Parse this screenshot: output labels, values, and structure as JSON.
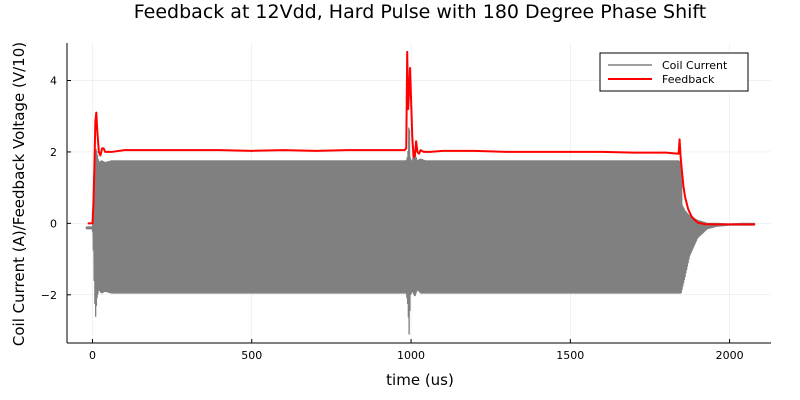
{
  "chart_data": {
    "type": "line",
    "title": "Feedback at 12Vdd, Hard Pulse with 180 Degree Phase Shift",
    "xlabel": "time (us)",
    "ylabel": "Coil Current (A)/Feedback Voltage (V/10)",
    "xlim": [
      -80,
      2130
    ],
    "ylim": [
      -3.35,
      5.05
    ],
    "xticks": [
      0,
      500,
      1000,
      1500,
      2000
    ],
    "yticks": [
      -2,
      0,
      2,
      4
    ],
    "xtick_labels": [
      "0",
      "500",
      "1000",
      "1500",
      "2000"
    ],
    "ytick_labels": [
      "−2",
      "0",
      "2",
      "4"
    ],
    "grid": true,
    "legend_position": "top-right",
    "series": [
      {
        "name": "Coil Current",
        "color": "#808080",
        "style": "oscillating envelope",
        "upper_envelope": {
          "x": [
            -20,
            0,
            4,
            6,
            10,
            14,
            20,
            28,
            40,
            60,
            200,
            500,
            800,
            985,
            990,
            994,
            998,
            1005,
            1012,
            1020,
            1030,
            1045,
            1100,
            1400,
            1700,
            1840,
            1848,
            1852,
            1860,
            1875,
            1900,
            1930,
            1960,
            2000,
            2040,
            2080
          ],
          "y": [
            -0.1,
            -0.1,
            0.6,
            1.7,
            2.1,
            2.0,
            1.7,
            1.75,
            1.7,
            1.75,
            1.75,
            1.75,
            1.75,
            1.75,
            1.9,
            3.0,
            1.7,
            1.8,
            1.95,
            1.75,
            1.8,
            1.75,
            1.75,
            1.75,
            1.75,
            1.75,
            1.7,
            0.5,
            0.35,
            0.2,
            0.08,
            0.0,
            0.0,
            -0.02,
            0.0,
            0.0
          ]
        },
        "lower_envelope": {
          "x": [
            -20,
            0,
            4,
            6,
            10,
            14,
            20,
            28,
            40,
            60,
            200,
            500,
            800,
            985,
            990,
            994,
            998,
            1005,
            1012,
            1020,
            1030,
            1045,
            1100,
            1400,
            1700,
            1840,
            1848,
            1852,
            1860,
            1875,
            1900,
            1930,
            1960,
            2000,
            2040,
            2080
          ],
          "y": [
            -0.15,
            -0.15,
            -1.0,
            -2.0,
            -2.6,
            -2.1,
            -1.85,
            -1.95,
            -1.9,
            -1.95,
            -1.95,
            -1.95,
            -1.95,
            -1.95,
            -2.3,
            -3.1,
            -2.0,
            -1.9,
            -2.05,
            -1.85,
            -1.95,
            -1.95,
            -1.95,
            -1.95,
            -1.95,
            -1.95,
            -1.95,
            -1.8,
            -1.5,
            -0.9,
            -0.4,
            -0.15,
            -0.08,
            -0.05,
            -0.05,
            -0.05
          ]
        }
      },
      {
        "name": "Feedback",
        "color": "#ff0000",
        "x": [
          -15,
          0,
          3,
          6,
          9,
          12,
          15,
          20,
          25,
          30,
          35,
          40,
          50,
          60,
          100,
          200,
          300,
          400,
          500,
          600,
          700,
          800,
          900,
          980,
          985,
          988,
          991,
          994,
          997,
          1000,
          1004,
          1008,
          1012,
          1016,
          1020,
          1025,
          1030,
          1040,
          1060,
          1100,
          1200,
          1300,
          1400,
          1500,
          1600,
          1700,
          1800,
          1840,
          1843,
          1846,
          1850,
          1855,
          1860,
          1870,
          1880,
          1890,
          1900,
          1920,
          1950,
          2000,
          2050,
          2080
        ],
        "y": [
          0.0,
          0.0,
          0.55,
          1.6,
          2.85,
          3.1,
          2.6,
          2.0,
          1.9,
          2.1,
          2.1,
          2.0,
          2.0,
          2.0,
          2.05,
          2.05,
          2.05,
          2.05,
          2.03,
          2.05,
          2.03,
          2.05,
          2.05,
          2.05,
          2.1,
          4.8,
          3.2,
          3.7,
          4.35,
          3.5,
          2.4,
          1.85,
          1.9,
          2.3,
          2.0,
          1.95,
          2.05,
          2.0,
          2.0,
          2.03,
          2.03,
          2.0,
          2.0,
          2.0,
          2.0,
          1.98,
          1.98,
          1.95,
          2.35,
          1.9,
          1.5,
          1.05,
          0.75,
          0.4,
          0.2,
          0.1,
          0.02,
          -0.02,
          -0.03,
          -0.03,
          -0.03,
          -0.03
        ]
      }
    ]
  }
}
